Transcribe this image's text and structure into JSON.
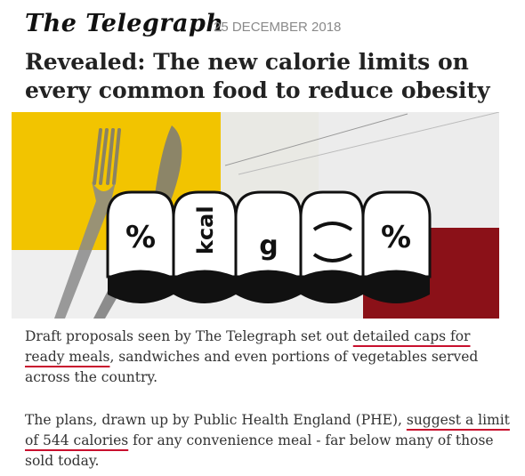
{
  "masthead": {
    "logo": "The Telegraph",
    "date": "25 DECEMBER 2018"
  },
  "article": {
    "headline": "Revealed: The new calorie limits on every common food to reduce obesity",
    "hero_labels": {
      "pct_left": "%",
      "kcal": "kcal",
      "g": "g",
      "pct_right": "%"
    },
    "paragraph1": {
      "before": "Draft proposals seen by The Telegraph set out ",
      "link": "detailed caps for ready meals",
      "after": ", sandwiches and even portions of vegetables served across the country."
    },
    "paragraph2": {
      "before": "The plans, drawn up by Public Health England (PHE), ",
      "link": "suggest a limit of 544 calories",
      "after": " for any convenience meal - far below many of those sold today."
    }
  },
  "colors": {
    "accent_red": "#c8102e",
    "yellow": "#f2c400",
    "dark_red": "#8b1118"
  }
}
